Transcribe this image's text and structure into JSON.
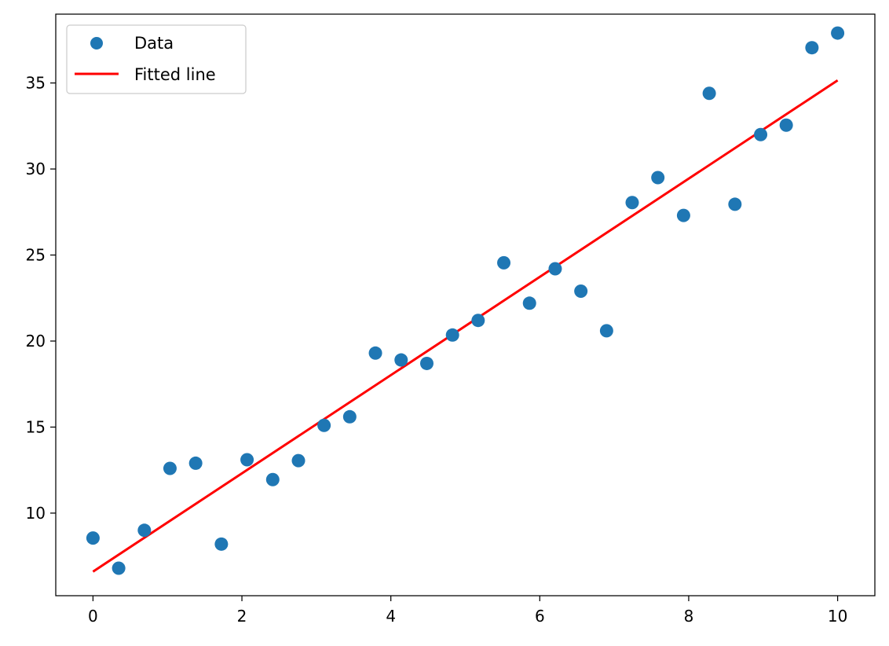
{
  "chart_data": {
    "type": "scatter",
    "title": "",
    "xlabel": "",
    "ylabel": "",
    "xlim": [
      -0.5,
      10.5
    ],
    "ylim": [
      5.2,
      39.0
    ],
    "xticks": [
      0,
      2,
      4,
      6,
      8,
      10
    ],
    "yticks": [
      10,
      15,
      20,
      25,
      30,
      35
    ],
    "grid": false,
    "legend": {
      "placement": "upper-left",
      "entries": [
        {
          "label": "Data",
          "marker": "circle",
          "color": "#1f77b4"
        },
        {
          "label": "Fitted line",
          "marker": "line",
          "color": "#ff0000"
        }
      ]
    },
    "series": [
      {
        "name": "Data",
        "kind": "scatter",
        "color": "#1f77b4",
        "x": [
          0.0,
          0.345,
          0.69,
          1.034,
          1.379,
          1.724,
          2.069,
          2.414,
          2.759,
          3.103,
          3.448,
          3.793,
          4.138,
          4.483,
          4.828,
          5.172,
          5.517,
          5.862,
          6.207,
          6.552,
          6.897,
          7.241,
          7.586,
          7.931,
          8.276,
          8.621,
          8.966,
          9.31,
          9.655,
          10.0
        ],
        "y": [
          8.55,
          6.8,
          9.0,
          12.6,
          12.9,
          8.2,
          13.1,
          11.95,
          13.05,
          15.1,
          15.6,
          19.3,
          18.9,
          18.7,
          20.35,
          21.2,
          24.55,
          22.2,
          24.2,
          22.9,
          20.6,
          28.05,
          29.5,
          27.3,
          34.4,
          27.95,
          32.0,
          32.55,
          37.05,
          37.9
        ]
      },
      {
        "name": "Fitted line",
        "kind": "line",
        "color": "#ff0000",
        "x": [
          0,
          10
        ],
        "y": [
          6.6,
          35.15
        ]
      }
    ]
  }
}
